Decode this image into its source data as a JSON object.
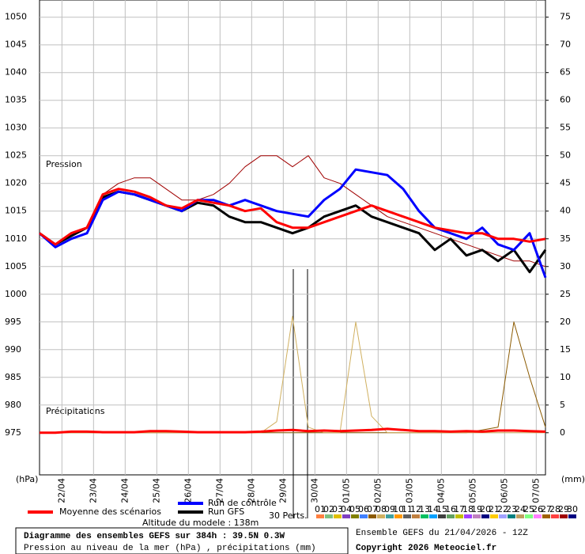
{
  "chart_data": {
    "type": "line",
    "x": [
      0,
      12,
      24,
      36,
      48,
      60,
      72,
      84,
      96,
      108,
      120,
      132,
      144,
      156,
      168,
      180,
      192,
      204,
      216,
      228,
      240,
      252,
      264,
      276,
      288,
      300,
      312,
      324,
      336,
      348,
      360,
      372,
      384
    ],
    "xlim": [
      0,
      384
    ],
    "xticks": [
      {
        "value": 17,
        "label": "22/04"
      },
      {
        "value": 41,
        "label": "23/04"
      },
      {
        "value": 65,
        "label": "24/04"
      },
      {
        "value": 89,
        "label": "25/04"
      },
      {
        "value": 113,
        "label": "26/04"
      },
      {
        "value": 137,
        "label": "27/04"
      },
      {
        "value": 161,
        "label": "28/04"
      },
      {
        "value": 185,
        "label": "29/04"
      },
      {
        "value": 209,
        "label": "30/04"
      },
      {
        "value": 233,
        "label": "01/05"
      },
      {
        "value": 257,
        "label": "02/05"
      },
      {
        "value": 281,
        "label": "03/05"
      },
      {
        "value": 305,
        "label": "04/05"
      },
      {
        "value": 329,
        "label": "05/05"
      },
      {
        "value": 353,
        "label": "06/05"
      },
      {
        "value": 377,
        "label": "07/05"
      }
    ],
    "ylim": [
      967.4,
      1053.1
    ],
    "yticks": [
      975,
      980,
      985,
      990,
      995,
      1000,
      1005,
      1010,
      1015,
      1020,
      1025,
      1030,
      1035,
      1040,
      1045,
      1050
    ],
    "y2lim": [
      -7.6,
      78.1
    ],
    "y2ticks": [
      0,
      5,
      10,
      15,
      20,
      25,
      30,
      35,
      40,
      45,
      50,
      55,
      60,
      65,
      70,
      75
    ],
    "ylabel": "(hPa)",
    "y2label": "(mm)",
    "pressure_label": "Pression",
    "precip_label": "Précipitations",
    "grid": true,
    "series": [
      {
        "name": "Moyenne des scénarios",
        "color": "#ff0000",
        "values": [
          1011,
          1009,
          1011,
          1012,
          1018,
          1019,
          1018.5,
          1017.5,
          1016,
          1015.5,
          1017,
          1016.5,
          1016,
          1015,
          1015.5,
          1013,
          1012,
          1012,
          1013,
          1014,
          1015,
          1016,
          1015,
          1014,
          1013,
          1012,
          1011.5,
          1011,
          1011,
          1010,
          1010,
          1009.5,
          1010
        ],
        "precip": [
          0,
          0,
          0.2,
          0.2,
          0.1,
          0.1,
          0.1,
          0.3,
          0.3,
          0.2,
          0.1,
          0.1,
          0.1,
          0.1,
          0.2,
          0.4,
          0.5,
          0.3,
          0.4,
          0.3,
          0.4,
          0.5,
          0.7,
          0.5,
          0.3,
          0.3,
          0.2,
          0.3,
          0.2,
          0.4,
          0.4,
          0.3,
          0.2
        ]
      },
      {
        "name": "Run de contrôle",
        "color": "#0000ff",
        "values": [
          1011,
          1008.5,
          1010,
          1011,
          1017,
          1018.5,
          1018,
          1017,
          1016,
          1015,
          1017,
          1017,
          1016,
          1017,
          1016,
          1015,
          1014.5,
          1014,
          1017,
          1019,
          1022.5,
          1022,
          1021.5,
          1019,
          1015,
          1012,
          1011,
          1010,
          1012,
          1009,
          1008,
          1011,
          1003
        ]
      },
      {
        "name": "Run GFS",
        "color": "#000000",
        "values": [
          1011,
          1009,
          1010.5,
          1012,
          1017.5,
          1018.5,
          1018,
          1017,
          1016,
          1015,
          1016.5,
          1016,
          1014,
          1013,
          1013,
          1012,
          1011,
          1012,
          1014,
          1015,
          1016,
          1014,
          1013,
          1012,
          1011,
          1008,
          1010,
          1007,
          1008,
          1006,
          1008,
          1004,
          1008
        ]
      }
    ]
  },
  "perts_label": "30 Perts.",
  "members": [
    {
      "label": "01",
      "color": "#ff8040"
    },
    {
      "label": "02",
      "color": "#80c080"
    },
    {
      "label": "03",
      "color": "#e0c000"
    },
    {
      "label": "04",
      "color": "#8040c0"
    },
    {
      "label": "05",
      "color": "#808000"
    },
    {
      "label": "06",
      "color": "#4080ff"
    },
    {
      "label": "07",
      "color": "#8b5a00",
      "precip": [
        0,
        0,
        0,
        0,
        0,
        0,
        0,
        0,
        0,
        0,
        0,
        0,
        0,
        0,
        0,
        0,
        0,
        0,
        0,
        0,
        0,
        0,
        0,
        0,
        0,
        0,
        0,
        0,
        0.5,
        1,
        20,
        10,
        1
      ]
    },
    {
      "label": "08",
      "color": "#d0b060",
      "precip": [
        0,
        0,
        0,
        0,
        0,
        0,
        0,
        0,
        0,
        0,
        0,
        0,
        0,
        0,
        0,
        2,
        21,
        1,
        0,
        0,
        20,
        3,
        0,
        0,
        0,
        0,
        0,
        0,
        0,
        0,
        0,
        0,
        0
      ]
    },
    {
      "label": "09",
      "color": "#40a0a0"
    },
    {
      "label": "10",
      "color": "#ff9900"
    },
    {
      "label": "11",
      "color": "#606060"
    },
    {
      "label": "12",
      "color": "#c08040"
    },
    {
      "label": "13",
      "color": "#00c060"
    },
    {
      "label": "14",
      "color": "#00a0ff"
    },
    {
      "label": "15",
      "color": "#404040"
    },
    {
      "label": "16",
      "color": "#60a060"
    },
    {
      "label": "17",
      "color": "#c0c000"
    },
    {
      "label": "18",
      "color": "#a040ff"
    },
    {
      "label": "19",
      "color": "#c080c0"
    },
    {
      "label": "20",
      "color": "#000080"
    },
    {
      "label": "21",
      "color": "#ffcc00"
    },
    {
      "label": "22",
      "color": "#a0a0ff"
    },
    {
      "label": "23",
      "color": "#008080"
    },
    {
      "label": "24",
      "color": "#c0a060"
    },
    {
      "label": "25",
      "color": "#80ff80"
    },
    {
      "label": "26",
      "color": "#ff80ff"
    },
    {
      "label": "27",
      "color": "#a06000"
    },
    {
      "label": "28",
      "color": "#ff4040"
    },
    {
      "label": "29",
      "color": "#a00000",
      "values": [
        1011,
        1009,
        1011,
        1012,
        1018,
        1020,
        1021,
        1021,
        1019,
        1017,
        1017,
        1018,
        1020,
        1023,
        1025,
        1025,
        1023,
        1025,
        1021,
        1020,
        1018,
        1016,
        1014,
        1013,
        1012,
        1011,
        1010,
        1009,
        1008,
        1007,
        1006,
        1006,
        1005
      ]
    },
    {
      "label": "30",
      "color": "#000080"
    }
  ],
  "altitude": "Altitude du modele : 138m",
  "footer": {
    "title": "Diagramme des ensembles GEFS sur 384h : 39.5N 0.3W",
    "subtitle": "Pression au niveau de la mer (hPa) , précipitations (mm)",
    "ensemble": "Ensemble GEFS du 21/04/2026 - 12Z",
    "copyright": "Copyright 2026 Meteociel.fr"
  }
}
